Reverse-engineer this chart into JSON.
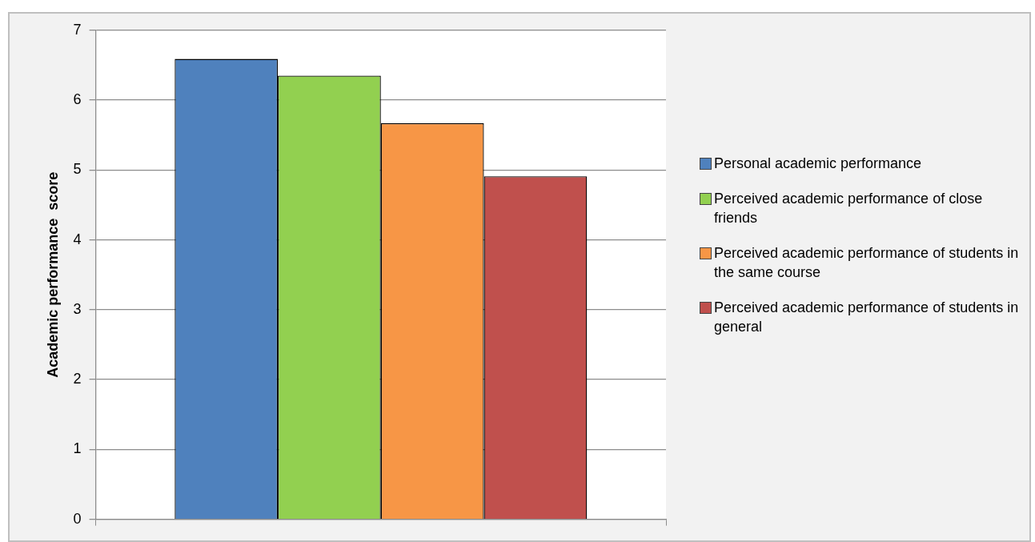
{
  "chart_data": {
    "type": "bar",
    "ylabel": "Academic performance  score",
    "categories": [
      null
    ],
    "series": [
      {
        "name": "Personal academic performance",
        "color": "#4f81bd",
        "values": [
          6.59
        ]
      },
      {
        "name": "Perceived academic performance of close friends",
        "color": "#92d050",
        "values": [
          6.35
        ]
      },
      {
        "name": "Perceived academic performance of students in the same course",
        "color": "#f79646",
        "values": [
          5.67
        ]
      },
      {
        "name": "Perceived academic performance of students in general",
        "color": "#c0504d",
        "values": [
          4.91
        ]
      }
    ],
    "ylim": [
      0,
      7
    ],
    "yticks": [
      0,
      1,
      2,
      3,
      4,
      5,
      6,
      7
    ],
    "grid": "y",
    "legend": "right"
  }
}
